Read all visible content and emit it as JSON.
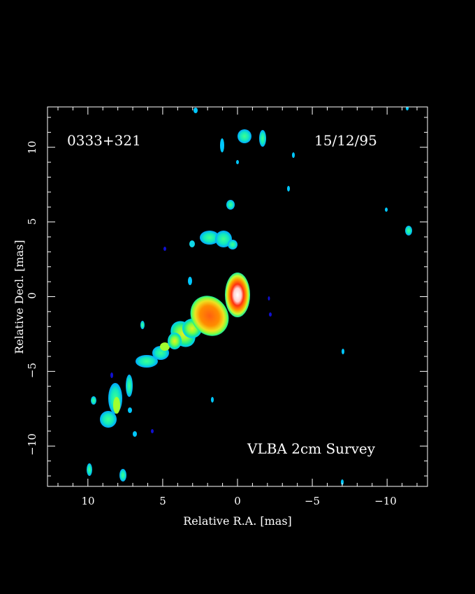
{
  "image": {
    "source_name": "0333+321",
    "date": "15/12/95",
    "survey": "VLBA 2cm Survey",
    "xlabel": "Relative R.A. [mas]",
    "ylabel": "Relative Decl. [mas]",
    "xlim": [
      12.7,
      -12.7
    ],
    "ylim": [
      -12.7,
      12.7
    ],
    "x_ticks": [
      "10",
      "5",
      "0",
      "−5",
      "−10"
    ],
    "y_ticks": [
      "10",
      "5",
      "0",
      "−5",
      "−10"
    ],
    "background_color": "#000000",
    "frame_color": "#ffffff",
    "colormap": [
      "#1010d0",
      "#00c8ff",
      "#10e8a0",
      "#c8ff30",
      "#ffa000",
      "#ff4010",
      "#ffffff"
    ]
  }
}
